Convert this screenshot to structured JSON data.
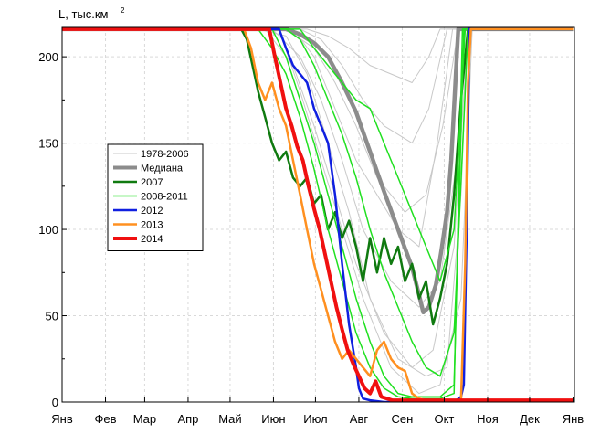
{
  "chart_data": {
    "type": "line",
    "ylabel_prefix": "L, тыс.км",
    "ylabel_superscript": "2",
    "ylim": [
      0,
      217
    ],
    "xlim": [
      0,
      366
    ],
    "yticks": [
      0,
      50,
      100,
      150,
      200
    ],
    "x_ticks": [
      {
        "label": "Янв",
        "day": 0
      },
      {
        "label": "Фев",
        "day": 31
      },
      {
        "label": "Мар",
        "day": 59
      },
      {
        "label": "Апр",
        "day": 90
      },
      {
        "label": "Май",
        "day": 120
      },
      {
        "label": "Июн",
        "day": 151
      },
      {
        "label": "Июл",
        "day": 181
      },
      {
        "label": "Авг",
        "day": 212
      },
      {
        "label": "Сен",
        "day": 243
      },
      {
        "label": "Окт",
        "day": 273
      },
      {
        "label": "Ноя",
        "day": 304
      },
      {
        "label": "Дек",
        "day": 334
      },
      {
        "label": "Янв",
        "day": 365
      }
    ],
    "legend_position": "center-left",
    "series": [
      {
        "name": "1978-2006",
        "color": "#c8c8c8",
        "width": 1,
        "kind": "band",
        "lines": [
          {
            "x": [
              0,
              140,
              160,
              175,
              190,
              205,
              220,
              240,
              260,
              275,
              285,
              290,
              365
            ],
            "y": [
              216,
              216,
              212,
              190,
              150,
              110,
              60,
              25,
              15,
              20,
              120,
              216,
              216
            ]
          },
          {
            "x": [
              0,
              150,
              170,
              185,
              200,
              215,
              235,
              255,
              270,
              282,
              288,
              365
            ],
            "y": [
              216,
              216,
              200,
              175,
              140,
              100,
              70,
              55,
              70,
              140,
              216,
              216
            ]
          },
          {
            "x": [
              0,
              160,
              180,
              195,
              210,
              225,
              245,
              260,
              272,
              283,
              365
            ],
            "y": [
              216,
              216,
              205,
              185,
              160,
              130,
              110,
              120,
              160,
              216,
              216
            ]
          },
          {
            "x": [
              0,
              145,
              165,
              180,
              195,
              210,
              230,
              250,
              265,
              280,
              290,
              365
            ],
            "y": [
              216,
              216,
              195,
              160,
              120,
              80,
              40,
              20,
              30,
              90,
              216,
              216
            ]
          },
          {
            "x": [
              0,
              170,
              185,
              200,
              215,
              230,
              250,
              262,
              275,
              365
            ],
            "y": [
              216,
              216,
              210,
              195,
              175,
              160,
              150,
              170,
              216,
              216
            ]
          },
          {
            "x": [
              0,
              155,
              170,
              185,
              200,
              215,
              235,
              255,
              270,
              285,
              293,
              365
            ],
            "y": [
              216,
              216,
              180,
              140,
              100,
              60,
              20,
              5,
              10,
              60,
              216,
              216
            ]
          },
          {
            "x": [
              0,
              165,
              180,
              195,
              210,
              225,
              240,
              255,
              268,
              279,
              365
            ],
            "y": [
              216,
              216,
              200,
              170,
              140,
              120,
              100,
              90,
              150,
              216,
              216
            ]
          },
          {
            "x": [
              0,
              175,
              190,
              205,
              220,
              235,
              250,
              262,
              270,
              365
            ],
            "y": [
              216,
              216,
              212,
              205,
              195,
              190,
              185,
              200,
              216,
              216
            ]
          }
        ]
      },
      {
        "name": "Медиана",
        "color": "#8c8c8c",
        "width": 4.5,
        "x": [
          0,
          160,
          170,
          180,
          190,
          200,
          210,
          220,
          230,
          240,
          250,
          255,
          258,
          262,
          267,
          271,
          275,
          278,
          283,
          365
        ],
        "y": [
          216,
          216,
          213,
          208,
          200,
          185,
          168,
          145,
          122,
          100,
          78,
          62,
          52,
          55,
          68,
          88,
          110,
          140,
          216,
          216
        ]
      },
      {
        "name": "2007",
        "color": "#107a10",
        "width": 2.5,
        "x": [
          0,
          128,
          132,
          136,
          140,
          145,
          150,
          155,
          160,
          165,
          170,
          175,
          180,
          185,
          190,
          195,
          200,
          205,
          210,
          215,
          220,
          225,
          230,
          235,
          240,
          245,
          250,
          255,
          260,
          265,
          270,
          275,
          280,
          285,
          290,
          365
        ],
        "y": [
          216,
          216,
          210,
          195,
          180,
          165,
          150,
          140,
          145,
          130,
          125,
          130,
          115,
          120,
          100,
          110,
          95,
          105,
          90,
          70,
          95,
          75,
          95,
          80,
          90,
          70,
          80,
          60,
          70,
          45,
          60,
          80,
          120,
          175,
          216,
          216
        ]
      },
      {
        "name": "2008-2011",
        "color": "#20e020",
        "width": 1.5,
        "kind": "group",
        "lines": [
          {
            "x": [
              0,
              150,
              160,
              170,
              180,
              190,
              200,
              210,
              220,
              230,
              240,
              250,
              260,
              270,
              280,
              287,
              365
            ],
            "y": [
              216,
              216,
              200,
              175,
              150,
              120,
              90,
              60,
              35,
              15,
              5,
              3,
              3,
              3,
              10,
              216,
              216
            ]
          },
          {
            "x": [
              0,
              160,
              170,
              180,
              190,
              200,
              210,
              220,
              230,
              240,
              250,
              260,
              270,
              280,
              290,
              365
            ],
            "y": [
              216,
              216,
              210,
              195,
              175,
              155,
              130,
              100,
              75,
              55,
              35,
              20,
              15,
              40,
              216,
              216
            ]
          },
          {
            "x": [
              0,
              170,
              180,
              190,
              200,
              210,
              220,
              230,
              240,
              250,
              260,
              270,
              280,
              288,
              365
            ],
            "y": [
              216,
              216,
              205,
              195,
              185,
              175,
              170,
              150,
              130,
              110,
              90,
              70,
              100,
              216,
              216
            ]
          },
          {
            "x": [
              0,
              140,
              150,
              160,
              170,
              180,
              190,
              200,
              210,
              220,
              230,
              240,
              250,
              260,
              270,
              280,
              286,
              365
            ],
            "y": [
              216,
              216,
              205,
              190,
              165,
              135,
              100,
              70,
              40,
              20,
              8,
              3,
              2,
              2,
              2,
              5,
              216,
              216
            ]
          }
        ]
      },
      {
        "name": "2012",
        "color": "#1020e0",
        "width": 2.5,
        "x": [
          0,
          155,
          160,
          165,
          170,
          175,
          180,
          185,
          190,
          195,
          200,
          205,
          210,
          212,
          215,
          220,
          230,
          240,
          250,
          260,
          270,
          280,
          285,
          287,
          289,
          291,
          365
        ],
        "y": [
          216,
          216,
          205,
          195,
          190,
          185,
          170,
          160,
          150,
          120,
          80,
          45,
          20,
          8,
          2,
          1,
          0,
          0,
          0,
          0,
          0,
          0,
          3,
          10,
          100,
          216,
          216
        ]
      },
      {
        "name": "2013",
        "color": "#ff9020",
        "width": 2.5,
        "x": [
          0,
          130,
          135,
          140,
          145,
          150,
          155,
          160,
          165,
          170,
          175,
          180,
          185,
          190,
          195,
          200,
          205,
          210,
          215,
          220,
          225,
          230,
          235,
          240,
          245,
          250,
          255,
          260,
          270,
          280,
          285,
          288,
          290,
          292,
          365
        ],
        "y": [
          216,
          216,
          205,
          185,
          175,
          185,
          170,
          160,
          140,
          120,
          100,
          80,
          65,
          50,
          35,
          25,
          30,
          25,
          20,
          15,
          30,
          35,
          25,
          20,
          18,
          5,
          2,
          1,
          0,
          0,
          0,
          80,
          185,
          216,
          216
        ]
      },
      {
        "name": "2014",
        "color": "#f01010",
        "width": 4,
        "x": [
          0,
          148,
          152,
          156,
          160,
          164,
          168,
          172,
          176,
          180,
          184,
          188,
          192,
          196,
          200,
          204,
          208,
          212,
          216,
          220,
          224,
          228,
          232,
          236,
          240,
          245,
          250,
          255,
          365
        ],
        "y": [
          216,
          216,
          200,
          185,
          170,
          160,
          148,
          140,
          125,
          112,
          100,
          85,
          70,
          55,
          42,
          30,
          22,
          15,
          8,
          5,
          12,
          3,
          2,
          1,
          1,
          1,
          1,
          1,
          1
        ]
      }
    ]
  }
}
